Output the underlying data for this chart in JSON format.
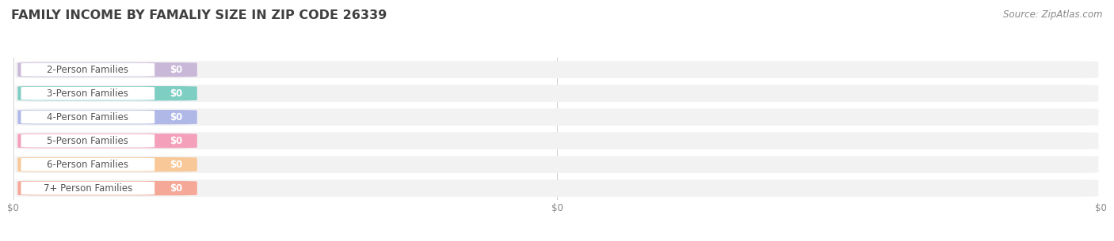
{
  "title": "FAMILY INCOME BY FAMALIY SIZE IN ZIP CODE 26339",
  "source_text": "Source: ZipAtlas.com",
  "categories": [
    "2-Person Families",
    "3-Person Families",
    "4-Person Families",
    "5-Person Families",
    "6-Person Families",
    "7+ Person Families"
  ],
  "values": [
    0,
    0,
    0,
    0,
    0,
    0
  ],
  "bar_colors": [
    "#c9b8d8",
    "#7ecec4",
    "#b0b8e8",
    "#f5a0bb",
    "#f8c898",
    "#f5a898"
  ],
  "bar_bg_color": "#f2f2f2",
  "value_labels": [
    "$0",
    "$0",
    "$0",
    "$0",
    "$0",
    "$0"
  ],
  "x_tick_labels": [
    "$0",
    "$0",
    "$0"
  ],
  "x_tick_positions": [
    0,
    0.5,
    1.0
  ],
  "background_color": "#ffffff",
  "title_fontsize": 11.5,
  "label_fontsize": 8.5,
  "source_fontsize": 8.5,
  "title_color": "#404040",
  "label_text_color": "#555555",
  "value_text_color": "#ffffff",
  "source_color": "#888888",
  "xlim": [
    0,
    1
  ],
  "bar_height": 0.72,
  "figsize": [
    14.06,
    3.05
  ],
  "dpi": 100
}
